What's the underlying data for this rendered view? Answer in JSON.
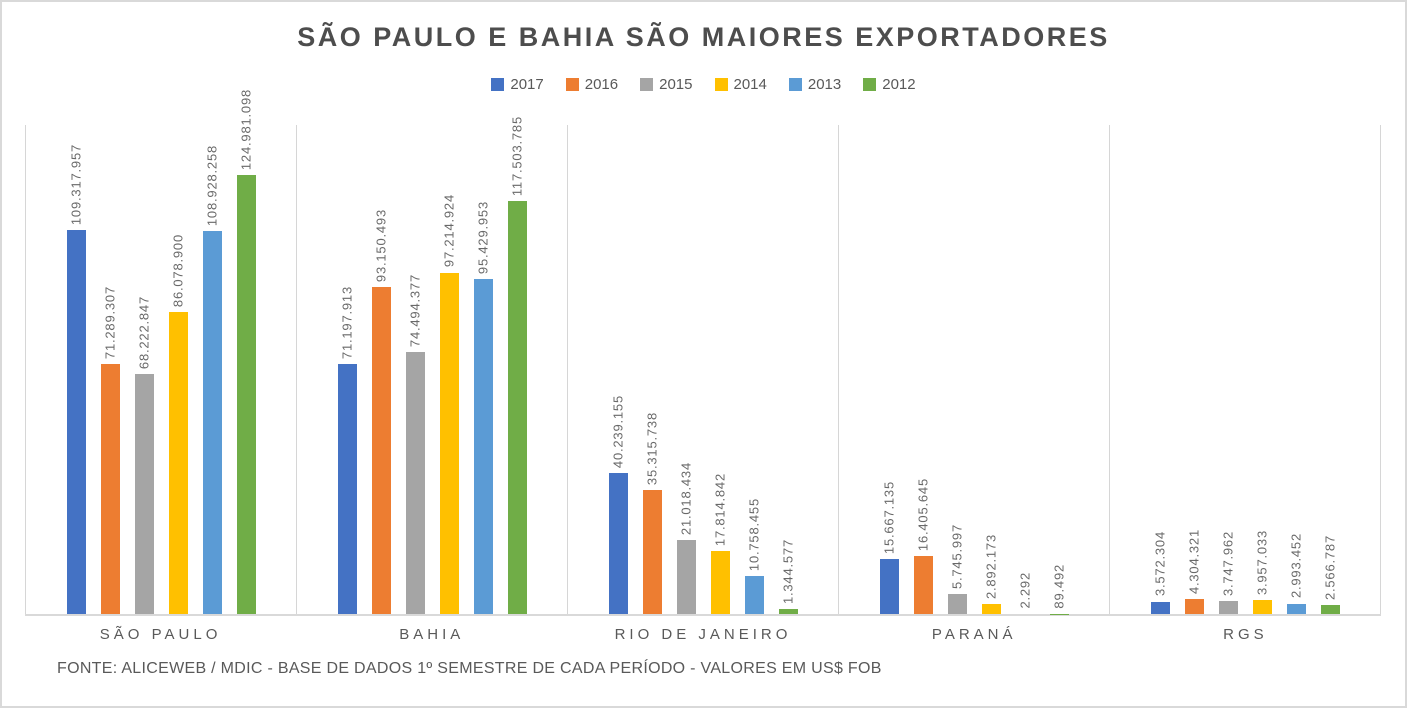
{
  "title": "SÃO PAULO E BAHIA SÃO MAIORES EXPORTADORES",
  "footer": {
    "source_note": "FONTE: ALICEWEB / MDIC - BASE DE DADOS 1º SEMESTRE DE CADA PERÍODO - VALORES EM US$ FOB"
  },
  "colors": {
    "title_text": "#4d4d4d",
    "label_text": "#696969",
    "axis_line": "#d9d9d9",
    "separator_line": "#d6d6d6",
    "outer_border": "#d9d9d9",
    "background": "#ffffff"
  },
  "chart_data": {
    "type": "bar",
    "title": "SÃO PAULO E BAHIA SÃO MAIORES EXPORTADORES",
    "subtitle": "",
    "xlabel": "",
    "ylabel": "",
    "value_axis_visible": false,
    "grid": false,
    "legend_position": "top",
    "data_labels": "rotated-90-above-bars",
    "units": "US$ FOB",
    "ylim": [
      0,
      124981098
    ],
    "categories": [
      "SÃO PAULO",
      "BAHIA",
      "RIO DE JANEIRO",
      "PARANÁ",
      "RGS"
    ],
    "series": [
      {
        "name": "2017",
        "color": "#4472C4",
        "values": [
          109317957,
          71197913,
          40239155,
          15667135,
          3572304
        ],
        "labels": [
          "109.317.957",
          "71.197.913",
          "40.239.155",
          "15.667.135",
          "3.572.304"
        ]
      },
      {
        "name": "2016",
        "color": "#ED7D31",
        "values": [
          71289307,
          93150493,
          35315738,
          16405645,
          4304321
        ],
        "labels": [
          "71.289.307",
          "93.150.493",
          "35.315.738",
          "16.405.645",
          "4.304.321"
        ]
      },
      {
        "name": "2015",
        "color": "#A5A5A5",
        "values": [
          68222847,
          74494377,
          21018434,
          5745997,
          3747962
        ],
        "labels": [
          "68.222.847",
          "74.494.377",
          "21.018.434",
          "5.745.997",
          "3.747.962"
        ]
      },
      {
        "name": "2014",
        "color": "#FFC000",
        "values": [
          86078900,
          97214924,
          17814842,
          2892173,
          3957033
        ],
        "labels": [
          "86.078.900",
          "97.214.924",
          "17.814.842",
          "2.892.173",
          "3.957.033"
        ]
      },
      {
        "name": "2013",
        "color": "#5B9BD5",
        "values": [
          108928258,
          95429953,
          10758455,
          2292,
          2993452
        ],
        "labels": [
          "108.928.258",
          "95.429.953",
          "10.758.455",
          "2.292",
          "2.993.452"
        ]
      },
      {
        "name": "2012",
        "color": "#70AD47",
        "values": [
          124981098,
          117503785,
          1344577,
          89492,
          2566787
        ],
        "labels": [
          "124.981.098",
          "117.503.785",
          "1.344.577",
          "89.492",
          "2.566.787"
        ]
      }
    ]
  }
}
